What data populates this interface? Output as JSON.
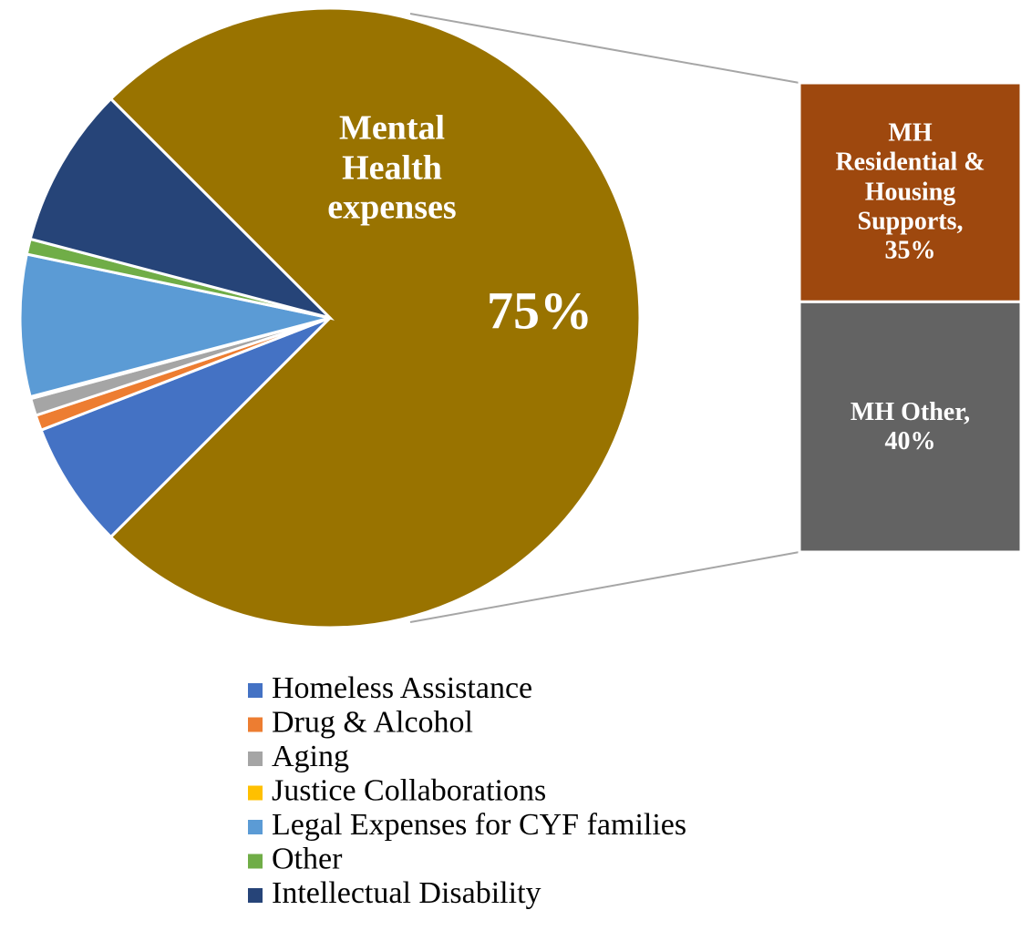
{
  "chart_data": {
    "type": "pie-of-bar",
    "categories": [
      "Homeless Assistance",
      "Drug & Alcohol",
      "Aging",
      "Justice Collaborations",
      "Legal Expenses for CYF families",
      "Other",
      "Intellectual Disability"
    ],
    "values": [
      6.6,
      0.8,
      0.9,
      0.1,
      7.4,
      0.8,
      8.4
    ],
    "colors": [
      "#4472c4",
      "#ed7d31",
      "#a5a5a5",
      "#ffc000",
      "#5b9bd5",
      "#70ad47",
      "#264478"
    ],
    "main": {
      "label": "Mental Health expenses",
      "value": 75,
      "value_label": "75%",
      "color": "#997300"
    },
    "bar": [
      {
        "label": "MH Residential & Housing Supports, 35%",
        "value": 35,
        "color": "#9e480e"
      },
      {
        "label": "MH Other, 40%",
        "value": 40,
        "color": "#636363"
      }
    ]
  }
}
